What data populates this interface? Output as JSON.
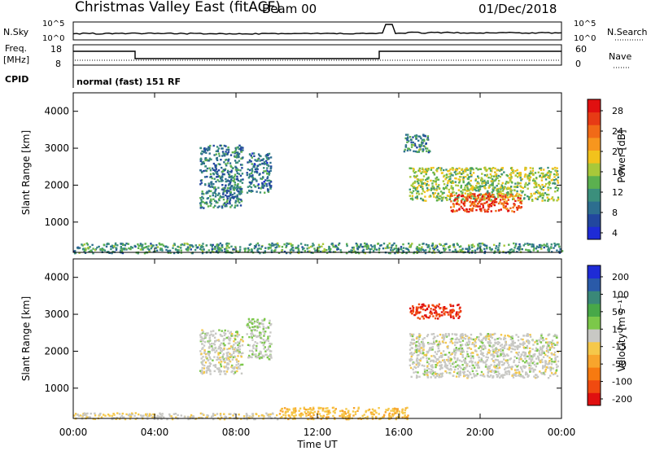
{
  "header": {
    "title": "Christmas Valley East (fitACF)",
    "beam": "Beam 00",
    "date": "01/Dec/2018"
  },
  "param_panels": {
    "nsky_label": "N.Sky",
    "nsky_ticks": [
      "10^5",
      "10^0"
    ],
    "nsearch_label": "N.Search",
    "nsearch_ticks": [
      "10^5",
      "10^0"
    ],
    "freq_label_1": "Freq.",
    "freq_label_2": "[MHz]",
    "freq_ticks": [
      "18",
      "8"
    ],
    "nave_label": "Nave",
    "nave_ticks": [
      "60",
      "0"
    ],
    "cpid_label": "CPID",
    "cpid_text": "normal (fast) 151 RF"
  },
  "colors": {
    "power_scale": [
      "#1e2bd6",
      "#22479e",
      "#2d6e8f",
      "#3b8f7c",
      "#5bb04f",
      "#a8c83a",
      "#f2c21c",
      "#f7961e",
      "#f16a17",
      "#e73b15",
      "#e01010"
    ],
    "velocity_scale": [
      "#e01010",
      "#f04a10",
      "#f77a10",
      "#f8a52c",
      "#f5c84a",
      "#c8c8c4",
      "#7cc84a",
      "#48a848",
      "#3a8878",
      "#2a5aa8",
      "#1e2bd6"
    ]
  },
  "chart_data": [
    {
      "type": "heatmap",
      "name": "power",
      "ylabel": "Slant Range [km]",
      "yticks": [
        "4000",
        "3000",
        "2000",
        "1000"
      ],
      "ylim": [
        180,
        4500
      ],
      "xlim": [
        0,
        24
      ],
      "colorbar_label": "Power [dB]",
      "colorbar_ticks": [
        "28",
        "24",
        "20",
        "16",
        "12",
        "8",
        "4"
      ],
      "colorbar_range": [
        0,
        30
      ],
      "regions": [
        {
          "t0": 6.2,
          "t1": 8.3,
          "r0": 1400,
          "r1": 3100,
          "v": 8
        },
        {
          "t0": 8.5,
          "t1": 9.7,
          "r0": 1800,
          "r1": 2900,
          "v": 7
        },
        {
          "t0": 16.2,
          "t1": 17.5,
          "r0": 2900,
          "r1": 3400,
          "v": 9
        },
        {
          "t0": 16.5,
          "t1": 23.8,
          "r0": 1600,
          "r1": 2500,
          "v": 14
        },
        {
          "t0": 18.5,
          "t1": 22.0,
          "r0": 1300,
          "r1": 1800,
          "v": 25
        },
        {
          "t0": 0.0,
          "t1": 24.0,
          "r0": 180,
          "r1": 450,
          "v": 10
        }
      ]
    },
    {
      "type": "heatmap",
      "name": "velocity",
      "ylabel": "Slant Range [km]",
      "yticks": [
        "4000",
        "3000",
        "2000",
        "1000"
      ],
      "ylim": [
        180,
        4500
      ],
      "xlim": [
        0,
        24
      ],
      "xlabel": "Time UT",
      "xticks": [
        "00:00",
        "04:00",
        "08:00",
        "12:00",
        "16:00",
        "20:00",
        "00:00"
      ],
      "colorbar_label": "Velocity [m s⁻¹]",
      "colorbar_ticks": [
        "200",
        "100",
        "50",
        "15",
        "-15",
        "-50",
        "-100",
        "-200"
      ],
      "colorbar_range": [
        -250,
        250
      ],
      "regions": [
        {
          "t0": 6.2,
          "t1": 8.3,
          "r0": 1400,
          "r1": 2600,
          "v": 0
        },
        {
          "t0": 8.5,
          "t1": 9.7,
          "r0": 1800,
          "r1": 2900,
          "v": 10
        },
        {
          "t0": 16.5,
          "t1": 19.0,
          "r0": 2900,
          "r1": 3300,
          "v": -200
        },
        {
          "t0": 16.5,
          "t1": 23.8,
          "r0": 1300,
          "r1": 2500,
          "v": 0
        },
        {
          "t0": 10.0,
          "t1": 16.5,
          "r0": 180,
          "r1": 500,
          "v": -60
        },
        {
          "t0": 0.0,
          "t1": 10.0,
          "r0": 180,
          "r1": 350,
          "v": -20
        }
      ]
    }
  ]
}
